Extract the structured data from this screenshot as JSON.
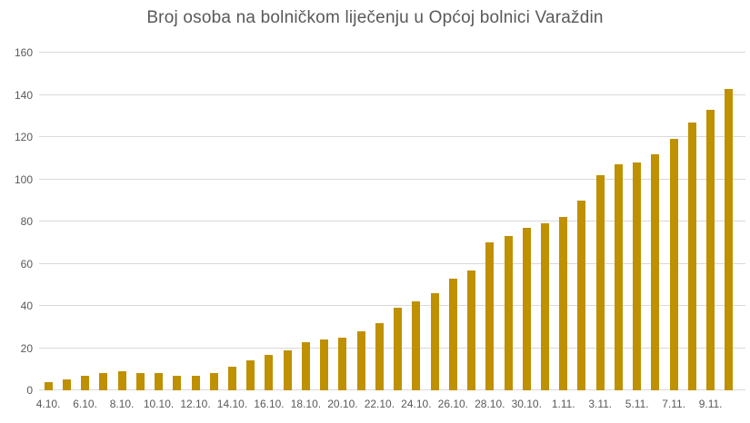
{
  "chart_data": {
    "type": "bar",
    "title": "Broj osoba na bolničkom liječenju u Općoj bolnici Varaždin",
    "categories": [
      "4.10.",
      "5.10.",
      "6.10.",
      "7.10.",
      "8.10.",
      "9.10.",
      "10.10.",
      "11.10.",
      "12.10.",
      "13.10.",
      "14.10.",
      "15.10.",
      "16.10.",
      "17.10.",
      "18.10.",
      "19.10.",
      "20.10.",
      "21.10.",
      "22.10.",
      "23.10.",
      "24.10.",
      "25.10.",
      "26.10.",
      "27.10.",
      "28.10.",
      "29.10.",
      "30.10.",
      "31.10.",
      "1.11.",
      "2.11.",
      "3.11.",
      "4.11.",
      "5.11.",
      "6.11.",
      "7.11.",
      "8.11.",
      "9.11.",
      "10.11."
    ],
    "values": [
      4,
      5,
      7,
      8,
      9,
      8,
      8,
      7,
      7,
      8,
      11,
      14,
      17,
      19,
      23,
      24,
      25,
      28,
      32,
      39,
      42,
      46,
      53,
      57,
      70,
      73,
      77,
      79,
      82,
      90,
      102,
      107,
      108,
      112,
      119,
      127,
      133,
      143
    ],
    "x_tick_labels": [
      "4.10.",
      "6.10.",
      "8.10.",
      "10.10.",
      "12.10.",
      "14.10.",
      "16.10.",
      "18.10.",
      "20.10.",
      "22.10.",
      "24.10.",
      "26.10.",
      "28.10.",
      "30.10.",
      "1.11.",
      "3.11.",
      "5.11.",
      "7.11.",
      "9.11."
    ],
    "x_tick_every": 2,
    "y_ticks": [
      0,
      20,
      40,
      60,
      80,
      100,
      120,
      140,
      160
    ],
    "ylim": [
      0,
      160
    ],
    "xlabel": "",
    "ylabel": "",
    "grid": true,
    "legend_position": "none",
    "colors": {
      "bar": "#BF9000",
      "gridline": "#D9D9D9",
      "axis_line": "#D9D9D9",
      "title_text": "#595959",
      "tick_text": "#595959",
      "background": "#FFFFFF"
    }
  }
}
